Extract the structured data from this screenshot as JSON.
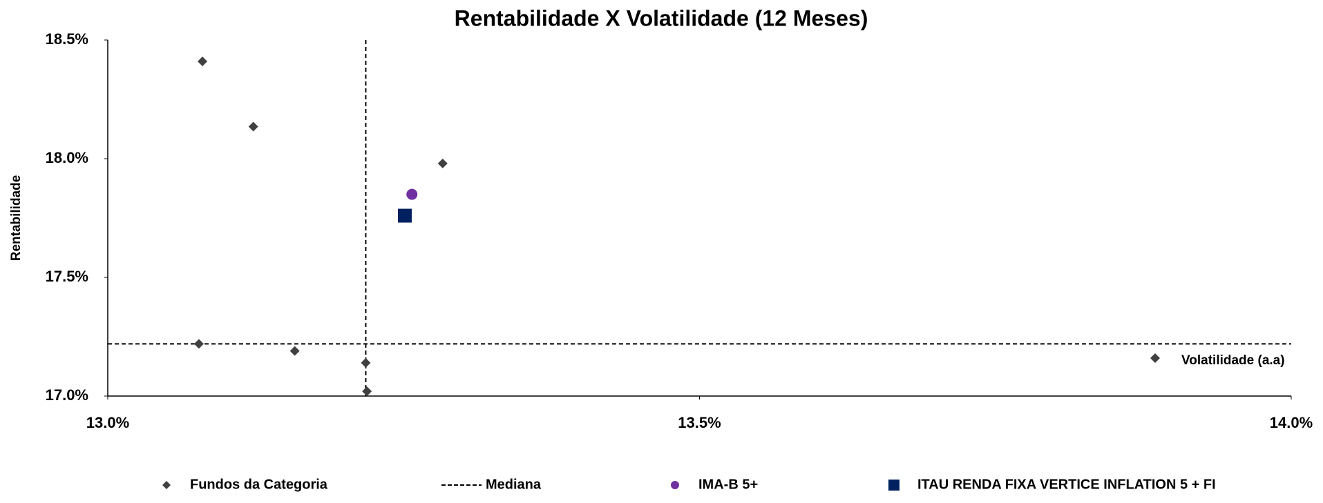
{
  "chart_data": {
    "type": "scatter",
    "title": "Rentabilidade X Volatilidade (12 Meses)",
    "x_label": "Volatilidade (a.a)",
    "y_label": "Rentabilidade",
    "xlim": [
      13.0,
      14.0
    ],
    "ylim": [
      17.0,
      18.5
    ],
    "xticks": [
      {
        "value": 13.0,
        "label": "13.0%"
      },
      {
        "value": 13.5,
        "label": "13.5%"
      },
      {
        "value": 14.0,
        "label": "14.0%"
      }
    ],
    "yticks": [
      {
        "value": 17.0,
        "label": "17.0%"
      },
      {
        "value": 17.5,
        "label": "17.5%"
      },
      {
        "value": 18.0,
        "label": "18.0%"
      },
      {
        "value": 18.5,
        "label": "18.5%"
      }
    ],
    "series": [
      {
        "name": "Fundos da Categoria",
        "color": "#404040",
        "marker": "diamond",
        "x": [
          13.08,
          13.123,
          13.283,
          13.077,
          13.158,
          13.218,
          13.219,
          13.885
        ],
        "y": [
          18.41,
          18.135,
          17.98,
          17.22,
          17.19,
          17.14,
          17.02,
          17.16
        ]
      },
      {
        "name": "IMA-B 5+",
        "color": "#7030a0",
        "marker": "circle",
        "x": [
          13.257
        ],
        "y": [
          17.85
        ]
      },
      {
        "name": "ITAU RENDA FIXA VERTICE INFLATION 5 + FI",
        "color": "#002060",
        "marker": "square",
        "x": [
          13.251
        ],
        "y": [
          17.76
        ]
      }
    ],
    "median": {
      "name": "Mediana",
      "color": "#000000",
      "x": 13.218,
      "y": 17.22
    }
  }
}
